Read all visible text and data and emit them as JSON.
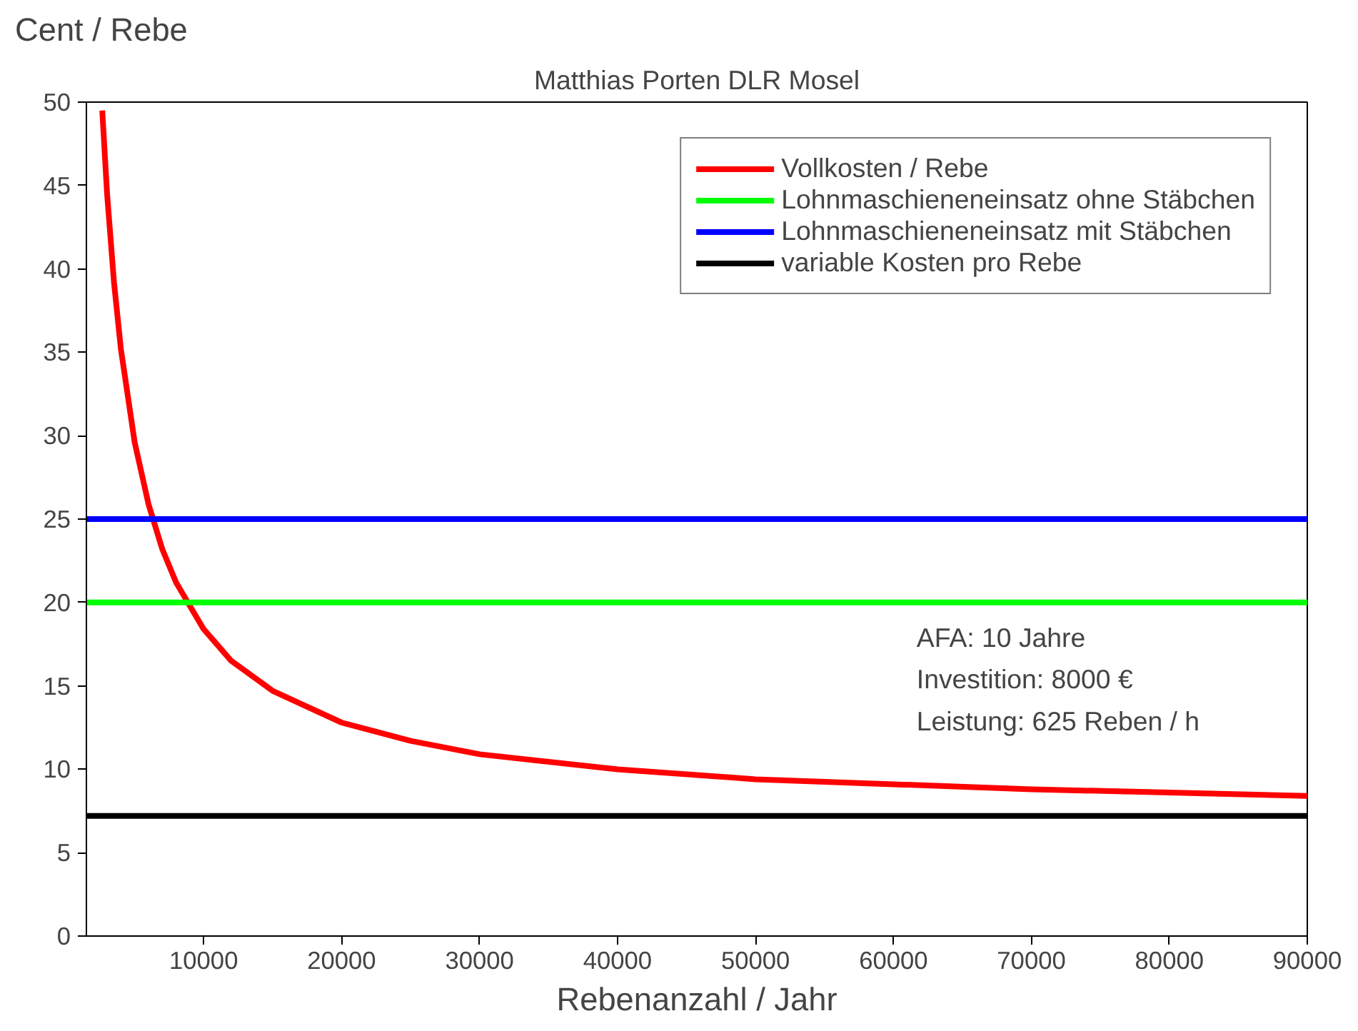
{
  "chart_data": {
    "type": "line",
    "title": "Matthias Porten DLR Mosel",
    "xlabel": "Rebenanzahl / Jahr",
    "ylabel": "Cent / Rebe",
    "xlim": [
      1500,
      90000
    ],
    "ylim": [
      0,
      50
    ],
    "xticks": [
      10000,
      20000,
      30000,
      40000,
      50000,
      60000,
      70000,
      80000,
      90000
    ],
    "yticks": [
      0,
      5,
      10,
      15,
      20,
      25,
      30,
      35,
      40,
      45,
      50
    ],
    "grid": false,
    "legend": "top right",
    "marker": "none",
    "line_style": "solid",
    "series": [
      {
        "name": "Vollkosten / Rebe",
        "color": "#ff0000",
        "x": [
          2650,
          3000,
          3500,
          4000,
          5000,
          6000,
          7000,
          8000,
          10000,
          12000,
          15000,
          20000,
          25000,
          30000,
          40000,
          50000,
          60000,
          70000,
          80000,
          90000
        ],
        "values": [
          49.5,
          44.5,
          39.2,
          35.2,
          29.6,
          25.9,
          23.2,
          21.2,
          18.4,
          16.5,
          14.7,
          12.8,
          11.7,
          10.9,
          10.0,
          9.4,
          9.1,
          8.8,
          8.6,
          8.4
        ]
      },
      {
        "name": "Lohnmaschieneneinsatz ohne Stäbchen",
        "color": "#00ff00",
        "x": [
          1500,
          90000
        ],
        "values": [
          20,
          20
        ]
      },
      {
        "name": "Lohnmaschieneneinsatz mit Stäbchen",
        "color": "#0000ff",
        "x": [
          1500,
          90000
        ],
        "values": [
          25,
          25
        ]
      },
      {
        "name": "variable Kosten pro Rebe",
        "color": "#000000",
        "x": [
          1500,
          90000
        ],
        "values": [
          7.2,
          7.2
        ]
      }
    ],
    "annotations": [
      "AFA: 10 Jahre",
      "Investition: 8000 €",
      "Leistung: 625 Reben / h"
    ]
  }
}
